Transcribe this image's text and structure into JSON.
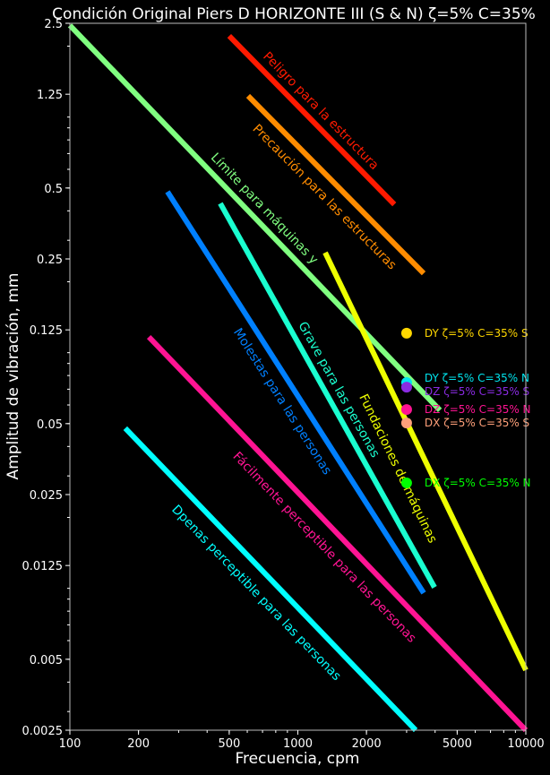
{
  "chart_data": {
    "type": "line",
    "title": "Condición Original Piers D HORIZONTE III (S & N) ζ=5% C=35%",
    "xlabel": "Frecuencia, cpm",
    "ylabel": "Amplitud de vibración, mm",
    "xscale": "log",
    "yscale": "log",
    "xlim": [
      100,
      10000
    ],
    "ylim": [
      0.0025,
      2.5
    ],
    "xticks": [
      100,
      200,
      500,
      1000,
      2000,
      5000,
      10000
    ],
    "xtick_labels": [
      "100",
      "200",
      "500",
      "1000",
      "2000",
      "5000",
      "10000"
    ],
    "yticks": [
      2.5,
      1.25,
      0.5,
      0.25,
      0.125,
      0.05,
      0.025,
      0.0125,
      0.005,
      0.0025
    ],
    "ytick_labels": [
      "2.5",
      "1.25",
      "0.5",
      "0.25",
      "0.125",
      "0.05",
      "0.025",
      "0.0125",
      "0.005",
      "0.0025"
    ],
    "grid": false,
    "background": "#000000",
    "lines": [
      {
        "label": "Peligro para la estructura",
        "color": "#ff1a00",
        "x": [
          500,
          2650
        ],
        "y": [
          2.21,
          0.426
        ],
        "label_at": [
          1259,
          1.06
        ]
      },
      {
        "label": "Precaución para las estructuras",
        "color": "#ff8c00",
        "x": [
          605,
          3565
        ],
        "y": [
          1.23,
          0.217
        ],
        "label_at": [
          1306,
          0.457
        ]
      },
      {
        "label": "Límite para máquinas y",
        "color": "#80ff80",
        "x": [
          100,
          4200
        ],
        "y": [
          2.45,
          0.057
        ],
        "label_at": [
          712,
          0.408
        ]
      },
      {
        "label": "Molestas para las personas",
        "color": "#0080ff",
        "x": [
          268,
          3565
        ],
        "y": [
          0.482,
          0.00955
        ],
        "label_at": [
          854,
          0.062
        ]
      },
      {
        "label": "Grave para las personas",
        "color": "#1affd0",
        "x": [
          457,
          3975
        ],
        "y": [
          0.43,
          0.0101
        ],
        "label_at": [
          1510,
          0.0696
        ]
      },
      {
        "label": "Fundaciones de máquinas",
        "color": "#eeff00",
        "x": [
          1318,
          10000
        ],
        "y": [
          0.266,
          0.0045
        ],
        "label_at": [
          2742,
          0.0322
        ]
      },
      {
        "label": "Fácilmente perceptible para las personas",
        "color": "#ff1493",
        "x": [
          222,
          10000
        ],
        "y": [
          0.1167,
          0.0025
        ],
        "label_at": [
          1306,
          0.0149
        ]
      },
      {
        "label": "Dpenas perceptible para las personas",
        "color": "#00ffff",
        "x": [
          175,
          3288
        ],
        "y": [
          0.0478,
          0.0025
        ],
        "label_at": [
          656,
          0.00955
        ]
      }
    ],
    "points": [
      {
        "label": "DY ζ=5% C=35% S",
        "color": "#ffd700",
        "x": 3000,
        "y": 0.121
      },
      {
        "label": "DY ζ=5% C=35% N",
        "color": "#00e5ee",
        "x": 3000,
        "y": 0.0747
      },
      {
        "label": "DZ ζ=5% C=35% S",
        "color": "#8a2be2",
        "x": 3000,
        "y": 0.0714
      },
      {
        "label": "DZ ζ=5% C=35% N",
        "color": "#ff1493",
        "x": 3000,
        "y": 0.0574
      },
      {
        "label": "DX ζ=5% C=35% S",
        "color": "#ffa07a",
        "x": 3000,
        "y": 0.0503
      },
      {
        "label": "DX ζ=5% C=35% N",
        "color": "#00ff00",
        "x": 3000,
        "y": 0.028
      }
    ]
  }
}
